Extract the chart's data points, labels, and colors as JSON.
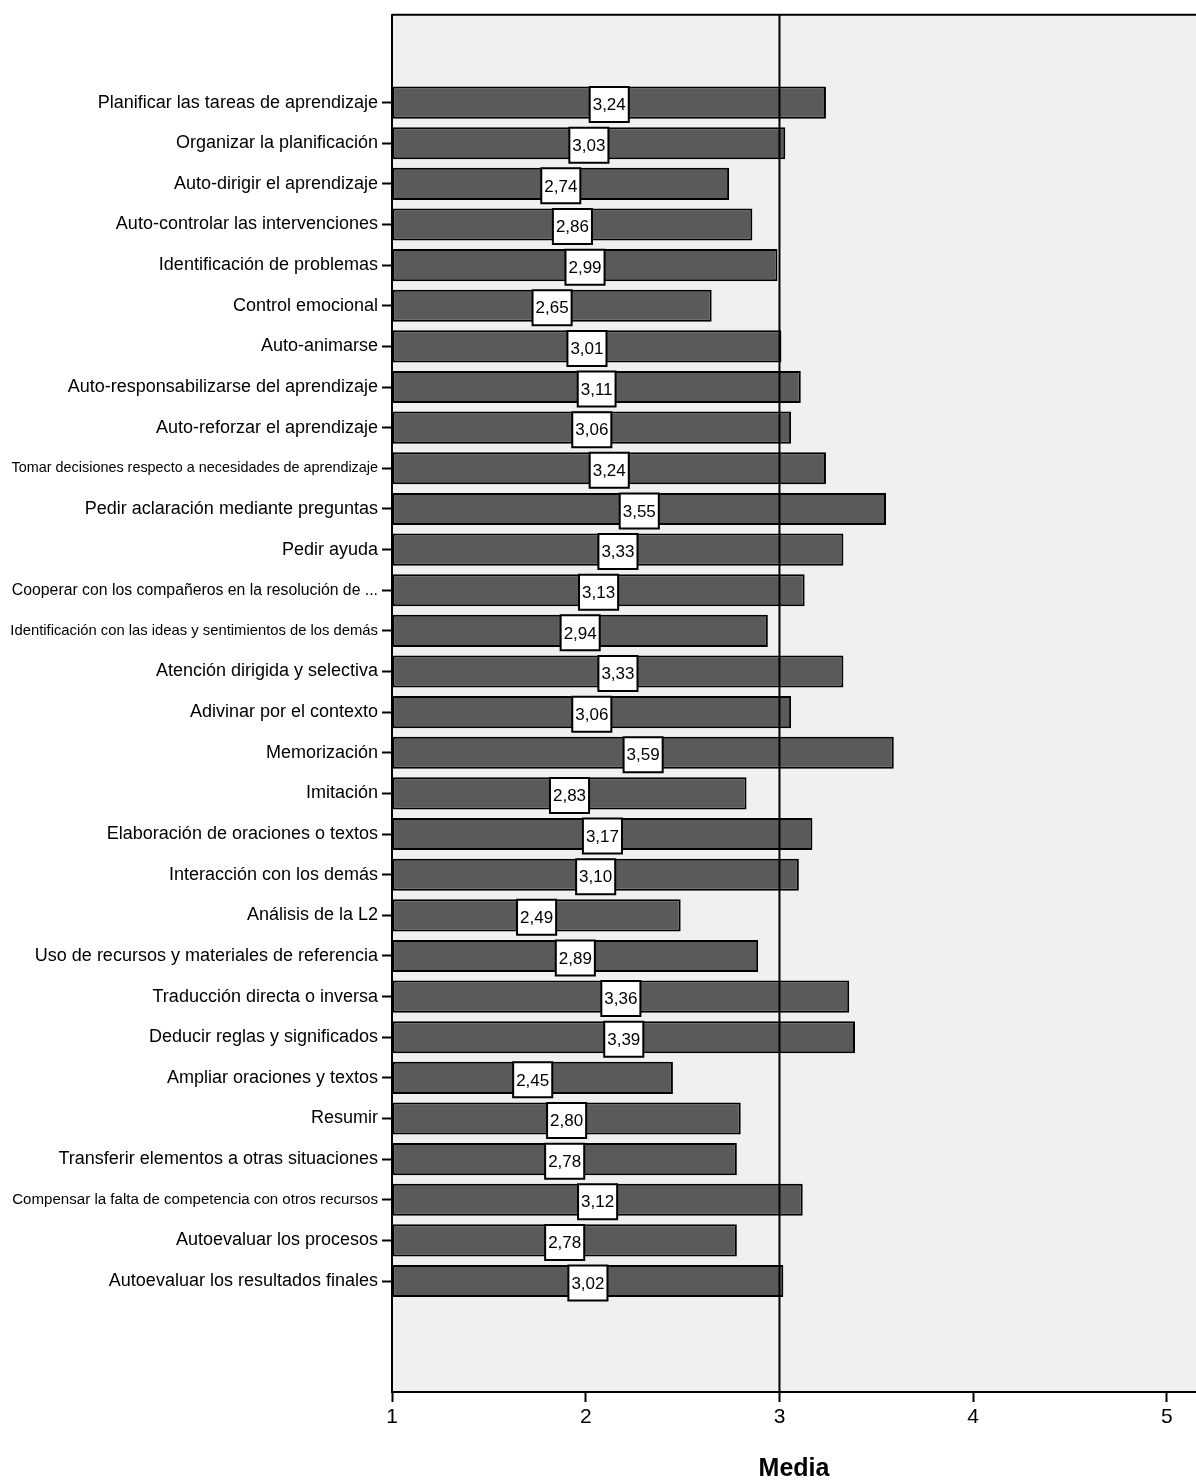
{
  "chart_data": {
    "type": "bar",
    "orientation": "horizontal",
    "categories": [
      "Planificar las tareas de aprendizaje",
      "Organizar la planificación",
      "Auto-dirigir el aprendizaje",
      "Auto-controlar las intervenciones",
      "Identificación de problemas",
      "Control emocional",
      "Auto-animarse",
      "Auto-responsabilizarse del aprendizaje",
      "Auto-reforzar el aprendizaje",
      "Tomar decisiones respecto a necesidades de aprendizaje",
      "Pedir aclaración mediante preguntas",
      "Pedir ayuda",
      "Cooperar con los compañeros en la resolución de ...",
      "Identificación con las ideas y sentimientos de los demás",
      "Atención dirigida y selectiva",
      "Adivinar por el contexto",
      "Memorización",
      "Imitación",
      "Elaboración de oraciones o textos",
      "Interacción con los demás",
      "Análisis de la L2",
      "Uso de recursos y materiales de referencia",
      "Traducción directa o inversa",
      "Deducir reglas y significados",
      "Ampliar oraciones y textos",
      "Resumir",
      "Transferir elementos a otras situaciones",
      "Compensar la falta de competencia con otros recursos",
      "Autoevaluar los procesos",
      "Autoevaluar los resultados finales"
    ],
    "values": [
      3.24,
      3.03,
      2.74,
      2.86,
      2.99,
      2.65,
      3.01,
      3.11,
      3.06,
      3.24,
      3.55,
      3.33,
      3.13,
      2.94,
      3.33,
      3.06,
      3.59,
      2.83,
      3.17,
      3.1,
      2.49,
      2.89,
      3.36,
      3.39,
      2.45,
      2.8,
      2.78,
      3.12,
      2.78,
      3.02
    ],
    "value_labels": [
      "3,24",
      "3,03",
      "2,74",
      "2,86",
      "2,99",
      "2,65",
      "3,01",
      "3,11",
      "3,06",
      "3,24",
      "3,55",
      "3,33",
      "3,13",
      "2,94",
      "3,33",
      "3,06",
      "3,59",
      "2,83",
      "3,17",
      "3,10",
      "2,49",
      "2,89",
      "3,36",
      "3,39",
      "2,45",
      "2,80",
      "2,78",
      "3,12",
      "2,78",
      "3,02"
    ],
    "color": "#5a5a5a",
    "xlim": [
      1,
      5.15
    ],
    "xticks": [
      1,
      2,
      3,
      4,
      5
    ],
    "xlabel": "Media",
    "ref_lines": [
      {
        "axis": "x",
        "value": 3,
        "color": "#000000"
      }
    ]
  }
}
